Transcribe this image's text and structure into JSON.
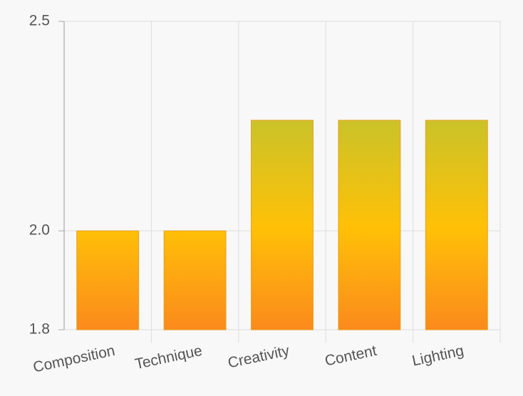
{
  "chart_data": {
    "type": "bar",
    "categories": [
      "Composition",
      "Technique",
      "Creativity",
      "Content",
      "Lighting"
    ],
    "values": [
      2.0,
      2.0,
      2.25,
      2.25,
      2.25
    ],
    "colors": [
      "#fb8a1c",
      "#ffc107",
      "#c8c22a"
    ],
    "ylim": [
      1.8,
      2.5
    ],
    "yticks": [
      1.8,
      {
        "value": 2,
        "label": "2.0"
      },
      2.5
    ],
    "log_scale": true,
    "grid": true
  }
}
